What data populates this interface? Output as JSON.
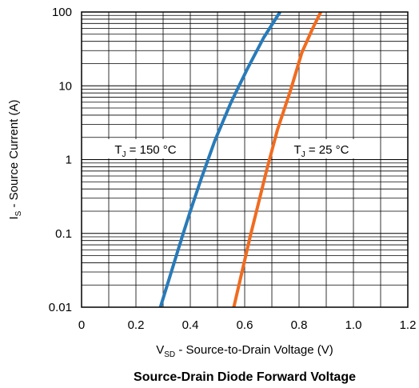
{
  "chart_data": {
    "type": "line",
    "title": "Source-Drain Diode Forward Voltage",
    "xlabel": {
      "main": "V",
      "sub": "SD",
      "rest": " - Source-to-Drain Voltage (V)"
    },
    "ylabel": {
      "main": "I",
      "sub": "S",
      "rest": " - Source Current (A)"
    },
    "xlim": [
      0,
      1.2
    ],
    "ylim": [
      0.01,
      100
    ],
    "yscale": "log",
    "grid": true,
    "x_ticks": [
      "0",
      "0.2",
      "0.4",
      "0.6",
      "0.8",
      "1.0",
      "1.2"
    ],
    "y_ticks": [
      "0.01",
      "0.1",
      "1",
      "10",
      "100"
    ],
    "series": [
      {
        "name": "T_J = 150 °C",
        "label": {
          "main": "T",
          "sub": "J",
          "rest": " = 150 °C"
        },
        "color": "#2a7ab8",
        "x": [
          0.29,
          0.33,
          0.37,
          0.4,
          0.44,
          0.49,
          0.55,
          0.61,
          0.67,
          0.73
        ],
        "y": [
          0.01,
          0.03,
          0.09,
          0.2,
          0.55,
          1.8,
          6.0,
          17,
          45,
          100
        ]
      },
      {
        "name": "T_J = 25 °C",
        "label": {
          "main": "T",
          "sub": "J",
          "rest": " = 25 °C"
        },
        "color": "#ef6c22",
        "x": [
          0.56,
          0.59,
          0.62,
          0.65,
          0.68,
          0.72,
          0.77,
          0.81,
          0.85,
          0.88
        ],
        "y": [
          0.01,
          0.03,
          0.09,
          0.25,
          0.7,
          2.5,
          9,
          28,
          60,
          100
        ]
      }
    ]
  }
}
